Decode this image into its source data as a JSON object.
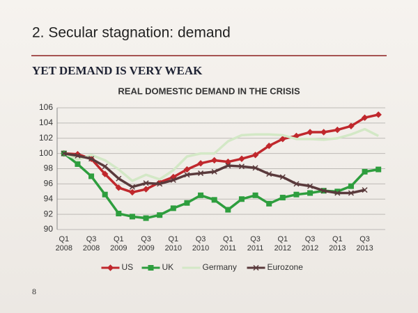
{
  "header": {
    "title": "2. Secular stagnation: demand",
    "subtitle": "YET DEMAND IS VERY WEAK"
  },
  "page_number": "8",
  "chart_data": {
    "type": "line",
    "title": "REAL DOMESTIC DEMAND IN THE CRISIS",
    "categories": [
      "Q1 2008",
      null,
      "Q3 2008",
      null,
      "Q1 2009",
      null,
      "Q3 2009",
      null,
      "Q1 2010",
      null,
      "Q3 2010",
      null,
      "Q1 2011",
      null,
      "Q3 2011",
      null,
      "Q1 2012",
      null,
      "Q3 2012",
      null,
      "Q1 2013",
      null,
      "Q3 2013",
      null
    ],
    "series": [
      {
        "name": "US",
        "color": "#c0282d",
        "marker": "diamond",
        "values": [
          100,
          99.9,
          99.3,
          97.3,
          95.5,
          94.9,
          95.3,
          96.2,
          96.9,
          97.9,
          98.7,
          99.1,
          98.9,
          99.3,
          99.8,
          101,
          101.9,
          102.3,
          102.8,
          102.8,
          103.1,
          103.6,
          104.7,
          105.1
        ]
      },
      {
        "name": "UK",
        "color": "#2e9e3e",
        "marker": "square",
        "values": [
          100,
          98.6,
          97.0,
          94.6,
          92.1,
          91.7,
          91.5,
          91.9,
          92.8,
          93.5,
          94.5,
          93.9,
          92.6,
          94.0,
          94.5,
          93.4,
          94.2,
          94.6,
          94.8,
          95.1,
          95.0,
          95.7,
          97.6,
          97.9
        ]
      },
      {
        "name": "Germany",
        "color": "#d3e8c6",
        "marker": "none",
        "values": [
          100,
          99.2,
          99.8,
          99.1,
          97.9,
          96.4,
          97.2,
          96.6,
          97.8,
          99.6,
          100.0,
          100.0,
          101.6,
          102.4,
          102.5,
          102.5,
          102.4,
          101.9,
          101.9,
          101.8,
          102.0,
          102.5,
          103.2,
          102.3
        ]
      },
      {
        "name": "Eurozone",
        "color": "#5a3a3c",
        "marker": "x",
        "values": [
          100,
          99.7,
          99.3,
          98.3,
          96.7,
          95.6,
          96.1,
          96.0,
          96.5,
          97.2,
          97.4,
          97.6,
          98.4,
          98.3,
          98.1,
          97.3,
          96.9,
          96.0,
          95.7,
          95.1,
          94.8,
          94.8,
          95.2,
          null
        ]
      }
    ],
    "ylim": [
      90,
      106
    ],
    "yticks": [
      90,
      92,
      94,
      96,
      98,
      100,
      102,
      104,
      106
    ],
    "grid": true,
    "legend": "bottom"
  }
}
